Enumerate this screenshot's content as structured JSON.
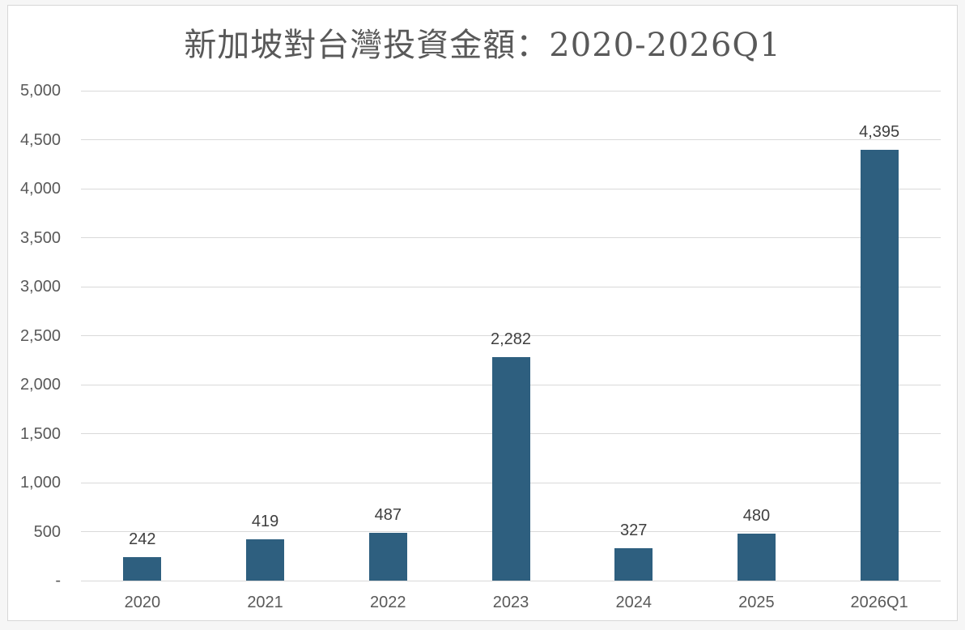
{
  "chart_data": {
    "type": "bar",
    "title": "新加坡對台灣投資金額：2020-2026Q1",
    "xlabel": "",
    "ylabel": "",
    "categories": [
      "2020",
      "2021",
      "2022",
      "2023",
      "2024",
      "2025",
      "2026Q1"
    ],
    "values": [
      242,
      419,
      487,
      2282,
      327,
      480,
      4395
    ],
    "value_labels": [
      "242",
      "419",
      "487",
      "2,282",
      "327",
      "480",
      "4,395"
    ],
    "ylim": [
      0,
      5000
    ],
    "ytick_step": 500,
    "ytick_labels": [
      "-",
      "500",
      "1,000",
      "1,500",
      "2,000",
      "2,500",
      "3,000",
      "3,500",
      "4,000",
      "4,500",
      "5,000"
    ],
    "grid": true,
    "legend": "none",
    "colors": {
      "bar": "#2e5f7f",
      "gridline": "#d9d9d9",
      "axis_text": "#595959",
      "value_label_text": "#3f3f3f",
      "title_text": "#595959",
      "frame_border": "#d7d7d7",
      "canvas_background": "#ffffff",
      "page_background": "#f6f6f6"
    }
  }
}
